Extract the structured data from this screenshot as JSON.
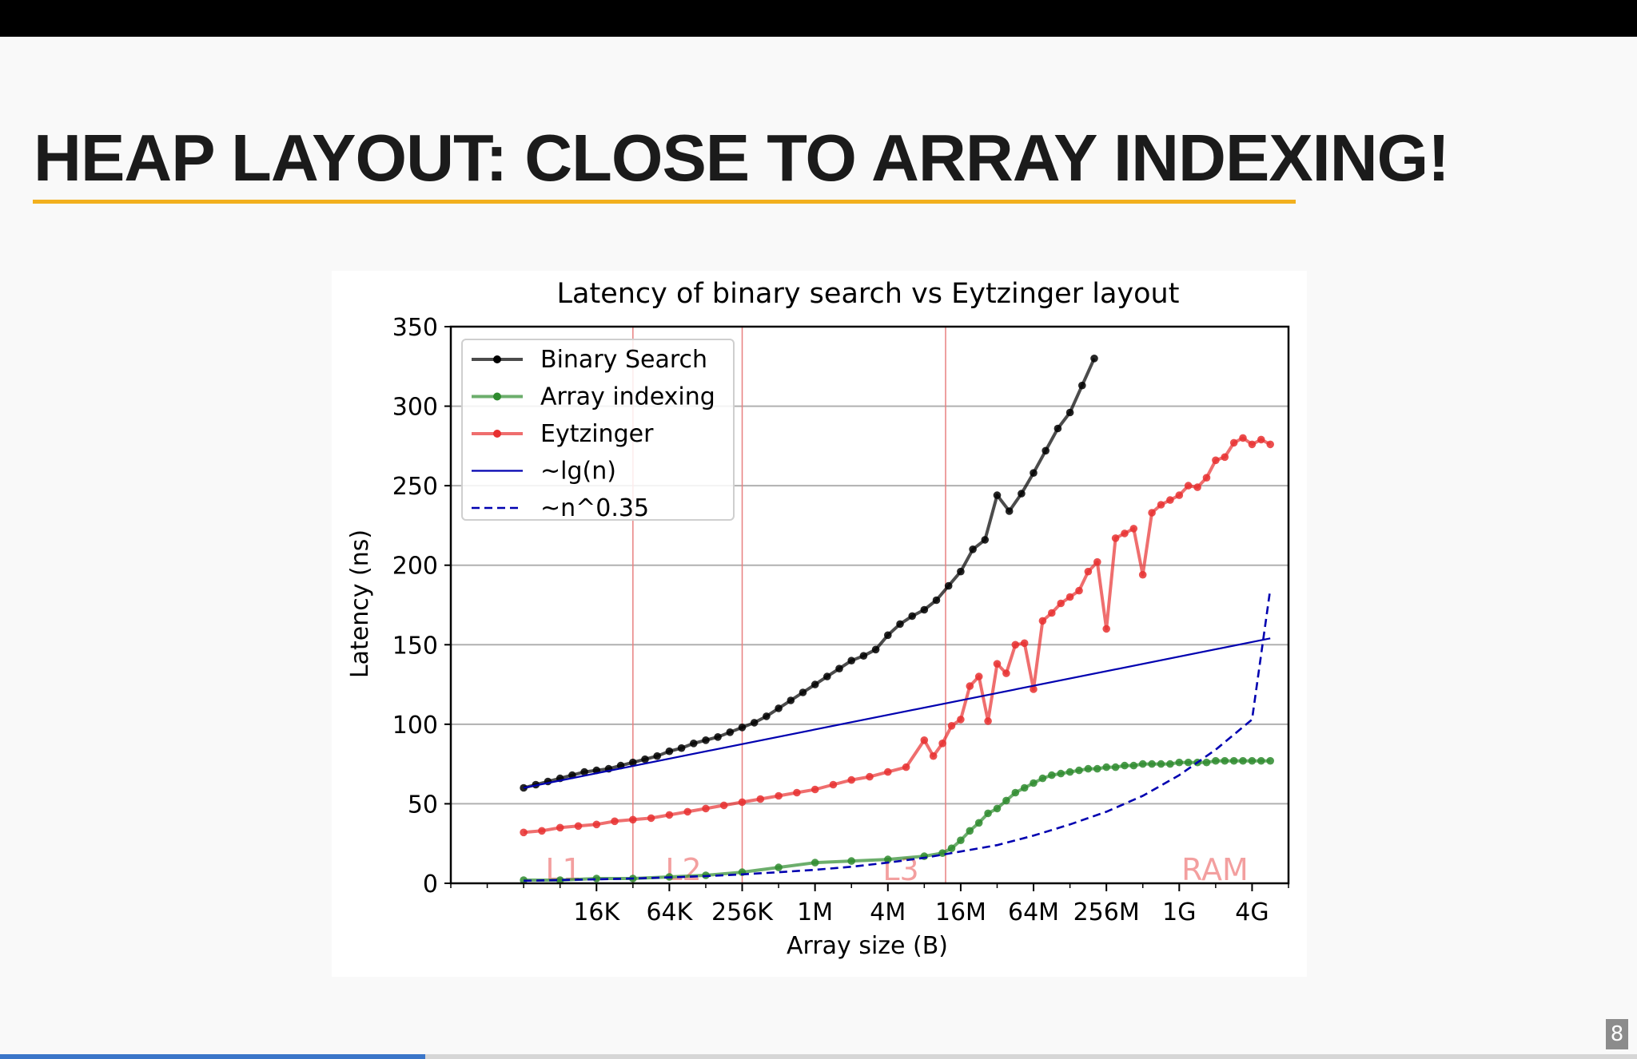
{
  "slide": {
    "title": "HEAP LAYOUT: CLOSE TO ARRAY INDEXING!",
    "page_number": "8",
    "progress": 0.26,
    "accent_color": "#f2b01e",
    "progress_color": "#3b76c9"
  },
  "chart_data": {
    "type": "line",
    "title": "Latency of binary search vs Eytzinger layout",
    "xlabel": "Array size (B)",
    "ylabel": "Latency (ns)",
    "x_scale": "log2",
    "xlim_bytes": [
      1024,
      8589934592
    ],
    "ylim": [
      0,
      350
    ],
    "xticks": [
      {
        "label": "16K",
        "bytes": 16384
      },
      {
        "label": "64K",
        "bytes": 65536
      },
      {
        "label": "256K",
        "bytes": 262144
      },
      {
        "label": "1M",
        "bytes": 1048576
      },
      {
        "label": "4M",
        "bytes": 4194304
      },
      {
        "label": "16M",
        "bytes": 16777216
      },
      {
        "label": "64M",
        "bytes": 67108864
      },
      {
        "label": "256M",
        "bytes": 268435456
      },
      {
        "label": "1G",
        "bytes": 1073741824
      },
      {
        "label": "4G",
        "bytes": 4294967296
      }
    ],
    "yticks": [
      0,
      50,
      100,
      150,
      200,
      250,
      300,
      350
    ],
    "grid": "horizontal",
    "legend_position": "top-left",
    "cache_levels": [
      {
        "label": "L1",
        "bytes": 32768
      },
      {
        "label": "L2",
        "bytes": 262144
      },
      {
        "label": "L3",
        "bytes": 12582912
      },
      {
        "label": "RAM",
        "bytes": null
      }
    ],
    "series": [
      {
        "name": "Binary Search",
        "color": "#000000",
        "style": "line-markers",
        "x_bytes": [
          4096,
          5161,
          6502,
          8192,
          10321,
          13004,
          16384,
          20643,
          26008,
          32768,
          41285,
          52016,
          65536,
          82570,
          104032,
          131072,
          165140,
          208064,
          262144,
          330281,
          416128,
          524288,
          660561,
          832255,
          1048576,
          1321122,
          1664510,
          2097152,
          2642245,
          3329021,
          4194304,
          5284490,
          6658043,
          8388608,
          10568981,
          13316085,
          16777216,
          21137962,
          26632170,
          33554432,
          42275925,
          53264341,
          67108864,
          84551850,
          106528681,
          134217728,
          169103700,
          213057363
        ],
        "values": [
          60,
          62,
          64,
          66,
          68,
          70,
          71,
          72,
          74,
          76,
          78,
          80,
          83,
          85,
          88,
          90,
          92,
          95,
          98,
          101,
          105,
          110,
          115,
          120,
          125,
          130,
          135,
          140,
          143,
          147,
          156,
          163,
          168,
          172,
          178,
          187,
          196,
          210,
          216,
          244,
          234,
          245,
          258,
          272,
          286,
          296,
          313,
          330
        ]
      },
      {
        "name": "Array indexing",
        "color": "#2e8b2e",
        "style": "line-markers",
        "x_bytes": [
          4096,
          8192,
          16384,
          32768,
          65536,
          131072,
          262144,
          524288,
          1048576,
          2097152,
          4194304,
          8388608,
          11863283,
          14108465,
          16777216,
          19951806,
          23726566,
          28215265,
          33554432,
          39903611,
          47453133,
          56430530,
          67108864,
          79807223,
          94906265,
          112861061,
          134217728,
          159614445,
          189812531,
          225722121,
          268435456,
          319228890,
          379625062,
          451444242,
          536870912,
          638457780,
          759250125,
          902888484,
          1073741824,
          1276915560,
          1518500250,
          1805776968,
          2147483648,
          2553831120,
          3037000499,
          3611553936,
          4294967296,
          5107662240,
          6074000999
        ],
        "values": [
          2,
          2,
          3,
          3,
          4,
          5,
          7,
          10,
          13,
          14,
          15,
          17,
          19,
          22,
          27,
          33,
          38,
          44,
          47,
          52,
          57,
          60,
          63,
          66,
          68,
          69,
          70,
          71,
          72,
          72,
          73,
          73,
          74,
          74,
          75,
          75,
          75,
          75,
          76,
          76,
          76,
          76,
          77,
          77,
          77,
          77,
          77,
          77,
          77
        ]
      },
      {
        "name": "Eytzinger",
        "color": "#e83030",
        "style": "line-markers",
        "x_bytes": [
          4096,
          5793,
          8192,
          11585,
          16384,
          23170,
          32768,
          46341,
          65536,
          92682,
          131072,
          185364,
          262144,
          370728,
          524288,
          741455,
          1048576,
          1482910,
          2097152,
          2965821,
          4194304,
          5931642,
          8388608,
          9975315,
          11863283,
          14108465,
          16777216,
          19951806,
          23726566,
          28215265,
          33554432,
          39903611,
          47453133,
          56430530,
          67108864,
          79807223,
          94906265,
          112861061,
          134217728,
          159614445,
          189812531,
          225722121,
          268435456,
          319228890,
          379625062,
          451444242,
          536870912,
          638457780,
          759250125,
          902888484,
          1073741824,
          1276915560,
          1518500250,
          1805776968,
          2147483648,
          2553831120,
          3037000499,
          3611553936,
          4294967296,
          5107662240,
          6074000999
        ],
        "values": [
          32,
          33,
          35,
          36,
          37,
          39,
          40,
          41,
          43,
          45,
          47,
          49,
          51,
          53,
          55,
          57,
          59,
          62,
          65,
          67,
          70,
          73,
          90,
          80,
          88,
          99,
          103,
          124,
          130,
          102,
          138,
          132,
          150,
          151,
          122,
          165,
          170,
          176,
          180,
          184,
          196,
          202,
          160,
          217,
          220,
          223,
          194,
          233,
          238,
          241,
          244,
          250,
          249,
          255,
          266,
          268,
          277,
          280,
          276,
          279,
          276
        ]
      },
      {
        "name": "~lg(n)",
        "color": "#0000b0",
        "style": "solid",
        "x_bytes": [
          4096,
          6074000999
        ],
        "values": [
          60,
          154
        ]
      },
      {
        "name": "~n^0.35",
        "color": "#0000b0",
        "style": "dashed",
        "x_bytes": [
          4096,
          8192,
          16384,
          32768,
          65536,
          131072,
          262144,
          524288,
          1048576,
          2097152,
          4194304,
          8388608,
          16777216,
          33554432,
          67108864,
          134217728,
          268435456,
          536870912,
          1073741824,
          2147483648,
          4294967296,
          6074000999
        ],
        "values": [
          1.6,
          2,
          2.5,
          3,
          3.7,
          4.5,
          5.6,
          7,
          8.5,
          10.4,
          13,
          16,
          20,
          24,
          30,
          37,
          45,
          55,
          68,
          84,
          103,
          185
        ]
      }
    ]
  }
}
